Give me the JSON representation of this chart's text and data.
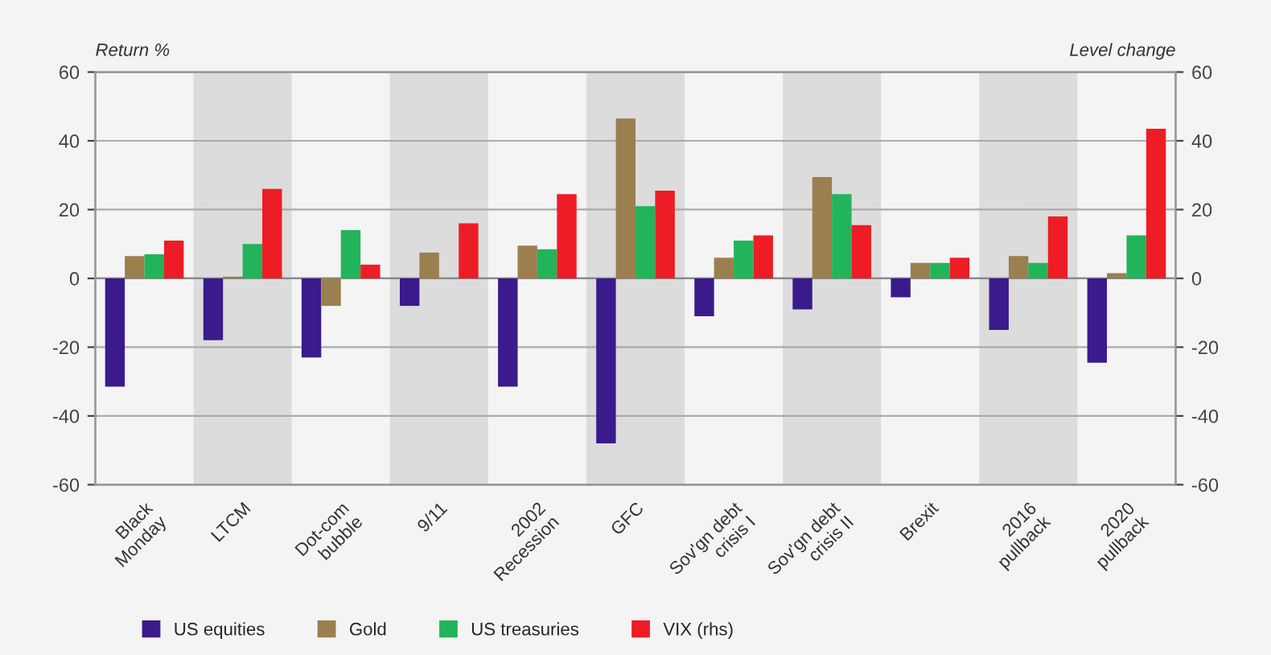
{
  "chart_data": {
    "type": "bar",
    "ylabel": "Return %",
    "y2label": "Level change",
    "categories": [
      "Black\nMonday",
      "LTCM",
      "Dot-com\nbubble",
      "9/11",
      "2002\nRecession",
      "GFC",
      "Sov'gn debt\ncrisis I",
      "Sov'gn debt\ncrisis II",
      "Brexit",
      "2016\npullback",
      "2020\npullback"
    ],
    "series": [
      {
        "name": "US equities",
        "color": "#3b1a8c",
        "values": [
          -31.5,
          -18,
          -23,
          -8,
          -31.5,
          -48,
          -11,
          -9,
          -5.5,
          -15,
          -24.5
        ]
      },
      {
        "name": "Gold",
        "color": "#9c7f4e",
        "values": [
          6.5,
          0.5,
          -8,
          7.5,
          9.5,
          46.5,
          6,
          29.5,
          4.5,
          6.5,
          1.5
        ]
      },
      {
        "name": "US treasuries",
        "color": "#22b45a",
        "values": [
          7,
          10,
          14,
          null,
          8.5,
          21,
          11,
          24.5,
          4.5,
          4.5,
          12.5
        ]
      },
      {
        "name": "VIX (rhs)",
        "color": "#ee1c25",
        "axis": "y2",
        "values": [
          11,
          26,
          4,
          16,
          24.5,
          25.5,
          12.5,
          15.5,
          6,
          18,
          43.5
        ]
      }
    ],
    "ylim": [
      -60,
      60
    ],
    "yticks": [
      -60,
      -40,
      -20,
      0,
      20,
      40,
      60
    ],
    "y2lim": [
      -60,
      60
    ],
    "y2ticks": [
      -60,
      -40,
      -20,
      0,
      20,
      40,
      60
    ],
    "bands": [
      {
        "axis": "x",
        "from": "LTCM",
        "to": "LTCM",
        "color": "#dcdcdc"
      },
      {
        "axis": "x",
        "from": "9/11",
        "to": "9/11",
        "color": "#dcdcdc"
      },
      {
        "axis": "x",
        "from": "GFC",
        "to": "GFC",
        "color": "#dcdcdc"
      },
      {
        "axis": "x",
        "from": "Sov'gn debt\ncrisis II",
        "to": "Sov'gn debt\ncrisis II",
        "color": "#dcdcdc"
      },
      {
        "axis": "x",
        "from": "2016\npullback",
        "to": "2016\npullback",
        "color": "#dcdcdc"
      }
    ],
    "grid": "y",
    "legend": "bottom"
  }
}
